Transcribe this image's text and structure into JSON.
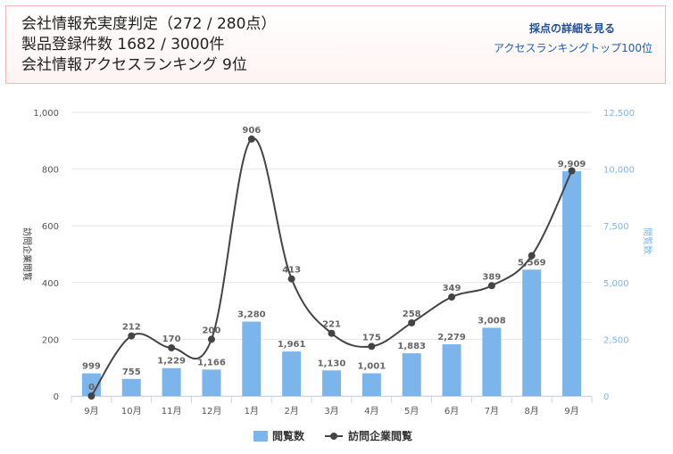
{
  "info": {
    "line1": "会社情報充実度判定（272 / 280点）",
    "line2": "製品登録件数 1682 / 3000件",
    "line3": "会社情報アクセスランキング 9位",
    "detail_link": "採点の詳細を見る",
    "ranking_link": "アクセスランキングトップ100位"
  },
  "colors": {
    "bar": "#7cb5ec",
    "line": "#434348",
    "grid": "#e6e6e6"
  },
  "chart_data": {
    "type": "bar",
    "categories": [
      "9月",
      "10月",
      "11月",
      "12月",
      "1月",
      "2月",
      "3月",
      "4月",
      "5月",
      "6月",
      "7月",
      "8月",
      "9月"
    ],
    "series": [
      {
        "name": "閲覧数",
        "type": "bar",
        "axis": "right",
        "values": [
          999,
          755,
          1229,
          1166,
          3280,
          1961,
          1130,
          1001,
          1883,
          2279,
          3008,
          5569,
          9909
        ],
        "labels": [
          "999",
          "755",
          "1,229",
          "1,166",
          "3,280",
          "1,961",
          "1,130",
          "1,001",
          "1,883",
          "2,279",
          "3,008",
          "5,569",
          "9,909"
        ]
      },
      {
        "name": "訪問企業閲覧",
        "type": "line",
        "axis": "left",
        "values": [
          0,
          212,
          170,
          200,
          906,
          413,
          221,
          175,
          258,
          349,
          389,
          495,
          794
        ],
        "labels": [
          "0",
          "212",
          "170",
          "200",
          "906",
          "413",
          "221",
          "175",
          "258",
          "349",
          "389",
          "",
          ""
        ]
      }
    ],
    "y_left": {
      "label": "訪問企業閲覧",
      "range": [
        0,
        1000
      ],
      "ticks": [
        "0",
        "200",
        "400",
        "600",
        "800",
        "1,000"
      ]
    },
    "y_right": {
      "label": "閲覧数",
      "range": [
        0,
        12500
      ],
      "ticks": [
        "0",
        "2,500",
        "5,000",
        "7,500",
        "10,000",
        "12,500"
      ]
    },
    "legend": [
      "閲覧数",
      "訪問企業閲覧"
    ],
    "legend_position": "bottom"
  }
}
